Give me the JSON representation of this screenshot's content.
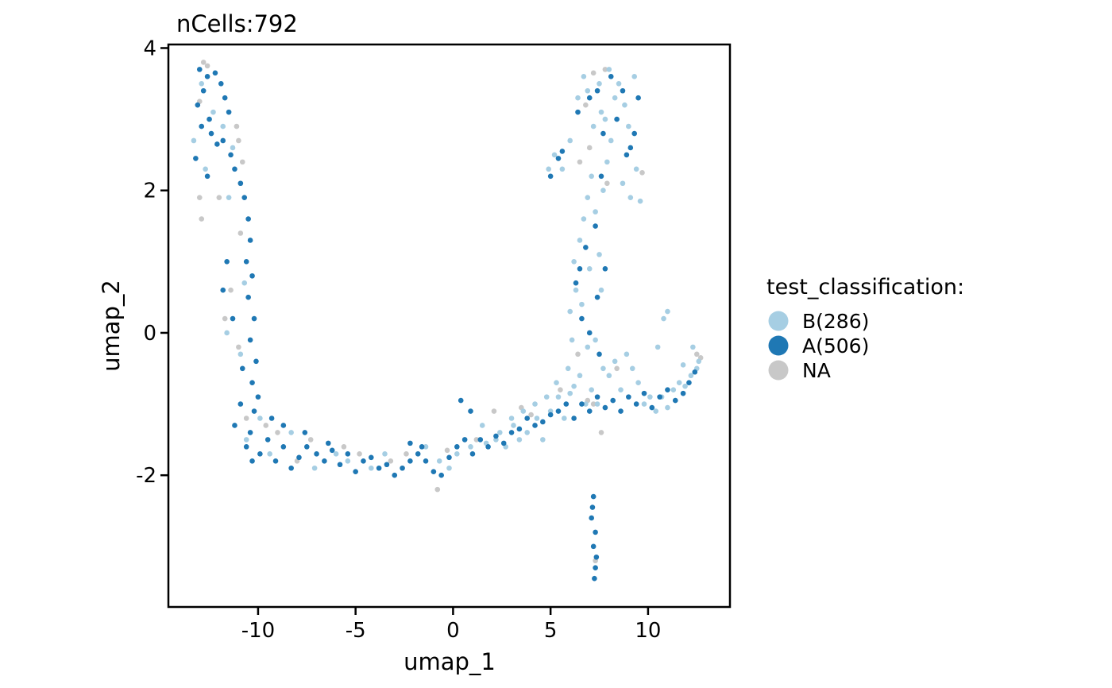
{
  "chart_data": {
    "type": "scatter",
    "title": "nCells:792",
    "xlabel": "umap_1",
    "ylabel": "umap_2",
    "xlim": [
      -14.6,
      14.2
    ],
    "ylim": [
      -3.85,
      4.05
    ],
    "xticks": [
      -10,
      -5,
      0,
      5,
      10
    ],
    "yticks": [
      -2,
      0,
      2,
      4
    ],
    "grid": false,
    "legend": {
      "title": "test_classification:",
      "placement": "right",
      "entries": [
        {
          "label": "B(286)",
          "color": "#A6CEE3"
        },
        {
          "label": "A(506)",
          "color": "#1F78B4"
        },
        {
          "label": "NA",
          "color": "#C8C8C8"
        }
      ]
    },
    "series": [
      {
        "name": "B(286)",
        "color": "#A6CEE3",
        "points": [
          [
            -12.9,
            3.5
          ],
          [
            -13.3,
            2.7
          ],
          [
            -12.7,
            2.3
          ],
          [
            -11.5,
            1.9
          ],
          [
            -10.7,
            0.7
          ],
          [
            -11.6,
            0.0
          ],
          [
            -9.9,
            -1.2
          ],
          [
            -8.3,
            -1.4
          ],
          [
            -7.1,
            -1.9
          ],
          [
            -6.0,
            -1.7
          ],
          [
            -4.2,
            -1.9
          ],
          [
            -3.5,
            -1.7
          ],
          [
            -1.4,
            -1.6
          ],
          [
            -0.7,
            -1.8
          ],
          [
            0.2,
            -1.7
          ],
          [
            0.9,
            -1.6
          ],
          [
            1.7,
            -1.55
          ],
          [
            2.2,
            -1.5
          ],
          [
            2.7,
            -1.6
          ],
          [
            3.1,
            -1.3
          ],
          [
            3.4,
            -1.5
          ],
          [
            3.8,
            -1.4
          ],
          [
            4.3,
            -1.2
          ],
          [
            4.6,
            -1.5
          ],
          [
            5.0,
            -1.1
          ],
          [
            5.4,
            -0.9
          ],
          [
            5.7,
            -1.2
          ],
          [
            6.0,
            -0.85
          ],
          [
            6.2,
            -0.75
          ],
          [
            6.5,
            -0.6
          ],
          [
            6.8,
            -1.0
          ],
          [
            7.1,
            -0.8
          ],
          [
            7.4,
            -1.0
          ],
          [
            7.7,
            -0.5
          ],
          [
            8.0,
            -0.6
          ],
          [
            8.3,
            -0.4
          ],
          [
            8.6,
            -0.8
          ],
          [
            8.9,
            -0.3
          ],
          [
            9.2,
            -0.5
          ],
          [
            9.5,
            -0.7
          ],
          [
            9.8,
            -1.0
          ],
          [
            10.1,
            -0.9
          ],
          [
            10.4,
            -1.1
          ],
          [
            10.7,
            -0.9
          ],
          [
            11.0,
            -1.05
          ],
          [
            11.3,
            -0.8
          ],
          [
            11.6,
            -0.7
          ],
          [
            11.9,
            -0.75
          ],
          [
            12.2,
            -0.6
          ],
          [
            12.5,
            -0.5
          ],
          [
            12.6,
            -0.4
          ],
          [
            12.3,
            -0.2
          ],
          [
            11.8,
            -0.45
          ],
          [
            11.0,
            0.3
          ],
          [
            10.8,
            0.2
          ],
          [
            10.5,
            -0.2
          ],
          [
            6.1,
            -0.1
          ],
          [
            6.0,
            0.3
          ],
          [
            6.3,
            0.6
          ],
          [
            6.2,
            1.0
          ],
          [
            6.5,
            1.3
          ],
          [
            6.7,
            1.6
          ],
          [
            6.9,
            1.9
          ],
          [
            7.1,
            2.2
          ],
          [
            7.3,
            1.7
          ],
          [
            7.5,
            1.1
          ],
          [
            7.7,
            2.0
          ],
          [
            7.9,
            2.4
          ],
          [
            8.1,
            2.7
          ],
          [
            7.8,
            3.0
          ],
          [
            8.3,
            3.3
          ],
          [
            8.5,
            3.5
          ],
          [
            8.8,
            3.2
          ],
          [
            9.0,
            2.9
          ],
          [
            9.3,
            3.6
          ],
          [
            8.0,
            3.7
          ],
          [
            7.5,
            3.5
          ],
          [
            6.9,
            3.4
          ],
          [
            6.7,
            3.6
          ],
          [
            6.4,
            3.3
          ],
          [
            6.0,
            2.7
          ],
          [
            5.6,
            2.3
          ],
          [
            5.2,
            2.5
          ],
          [
            4.9,
            2.3
          ],
          [
            7.2,
            2.9
          ],
          [
            7.6,
            3.1
          ],
          [
            8.7,
            2.1
          ],
          [
            9.1,
            1.9
          ],
          [
            9.4,
            2.3
          ],
          [
            9.6,
            1.85
          ],
          [
            6.6,
            0.4
          ],
          [
            6.9,
            -0.2
          ],
          [
            7.3,
            -0.1
          ],
          [
            7.6,
            0.6
          ],
          [
            5.9,
            -0.5
          ],
          [
            5.3,
            -0.7
          ],
          [
            4.8,
            -0.9
          ],
          [
            4.2,
            -1.0
          ],
          [
            3.6,
            -1.1
          ],
          [
            3.0,
            -1.2
          ],
          [
            2.4,
            -1.4
          ],
          [
            1.5,
            -1.3
          ],
          [
            0.6,
            -1.5
          ],
          [
            -0.2,
            -1.9
          ],
          [
            -5.4,
            -1.8
          ],
          [
            -9.4,
            -1.7
          ],
          [
            -10.6,
            -1.5
          ],
          [
            -10.9,
            -0.3
          ],
          [
            -11.3,
            2.6
          ],
          [
            -12.3,
            3.1
          ],
          [
            -11.8,
            2.9
          ],
          [
            7.0,
            0.9
          ]
        ]
      },
      {
        "name": "A(506)",
        "color": "#1F78B4",
        "points": [
          [
            -13.0,
            3.7
          ],
          [
            -12.8,
            3.4
          ],
          [
            -12.6,
            3.6
          ],
          [
            -12.2,
            3.65
          ],
          [
            -11.9,
            3.5
          ],
          [
            -11.7,
            3.3
          ],
          [
            -11.5,
            3.1
          ],
          [
            -12.5,
            3.0
          ],
          [
            -12.9,
            2.9
          ],
          [
            -13.1,
            3.2
          ],
          [
            -12.4,
            2.8
          ],
          [
            -12.1,
            2.65
          ],
          [
            -11.8,
            2.7
          ],
          [
            -11.4,
            2.5
          ],
          [
            -11.2,
            2.3
          ],
          [
            -10.9,
            2.1
          ],
          [
            -10.7,
            1.9
          ],
          [
            -10.5,
            1.6
          ],
          [
            -10.4,
            1.3
          ],
          [
            -10.6,
            1.0
          ],
          [
            -10.3,
            0.8
          ],
          [
            -10.5,
            0.5
          ],
          [
            -10.2,
            0.2
          ],
          [
            -10.4,
            -0.1
          ],
          [
            -10.1,
            -0.4
          ],
          [
            -10.3,
            -0.7
          ],
          [
            -10.0,
            -0.9
          ],
          [
            -10.2,
            -1.1
          ],
          [
            -10.4,
            -1.4
          ],
          [
            -10.6,
            -1.6
          ],
          [
            -10.3,
            -1.8
          ],
          [
            -9.9,
            -1.7
          ],
          [
            -9.5,
            -1.5
          ],
          [
            -9.1,
            -1.8
          ],
          [
            -8.7,
            -1.6
          ],
          [
            -8.3,
            -1.9
          ],
          [
            -7.9,
            -1.75
          ],
          [
            -7.5,
            -1.6
          ],
          [
            -7.0,
            -1.7
          ],
          [
            -6.6,
            -1.8
          ],
          [
            -6.2,
            -1.65
          ],
          [
            -5.8,
            -1.85
          ],
          [
            -5.4,
            -1.7
          ],
          [
            -5.0,
            -1.95
          ],
          [
            -4.6,
            -1.8
          ],
          [
            -4.2,
            -1.75
          ],
          [
            -3.8,
            -1.9
          ],
          [
            -3.4,
            -1.85
          ],
          [
            -3.0,
            -2.0
          ],
          [
            -2.6,
            -1.9
          ],
          [
            -2.2,
            -1.8
          ],
          [
            -1.8,
            -1.7
          ],
          [
            -1.4,
            -1.8
          ],
          [
            -1.0,
            -1.95
          ],
          [
            -0.6,
            -2.0
          ],
          [
            -0.2,
            -1.75
          ],
          [
            0.2,
            -1.6
          ],
          [
            0.6,
            -1.5
          ],
          [
            1.0,
            -1.7
          ],
          [
            1.4,
            -1.5
          ],
          [
            1.8,
            -1.6
          ],
          [
            2.2,
            -1.45
          ],
          [
            2.6,
            -1.55
          ],
          [
            3.0,
            -1.4
          ],
          [
            3.4,
            -1.35
          ],
          [
            3.8,
            -1.2
          ],
          [
            4.2,
            -1.3
          ],
          [
            4.6,
            -1.25
          ],
          [
            5.0,
            -1.15
          ],
          [
            5.4,
            -1.1
          ],
          [
            5.8,
            -1.0
          ],
          [
            6.2,
            -1.2
          ],
          [
            6.6,
            -1.0
          ],
          [
            7.0,
            -1.1
          ],
          [
            7.4,
            -0.9
          ],
          [
            7.8,
            -1.05
          ],
          [
            8.2,
            -0.95
          ],
          [
            8.6,
            -1.1
          ],
          [
            9.0,
            -0.9
          ],
          [
            9.4,
            -1.0
          ],
          [
            9.8,
            -0.85
          ],
          [
            10.2,
            -1.05
          ],
          [
            10.6,
            -0.9
          ],
          [
            11.0,
            -0.8
          ],
          [
            11.4,
            -0.95
          ],
          [
            11.8,
            -0.85
          ],
          [
            12.1,
            -0.7
          ],
          [
            12.4,
            -0.55
          ],
          [
            7.2,
            -2.3
          ],
          [
            7.1,
            -2.6
          ],
          [
            7.3,
            -2.8
          ],
          [
            7.2,
            -3.0
          ],
          [
            7.3,
            -3.3
          ],
          [
            7.25,
            -3.45
          ],
          [
            7.15,
            -2.45
          ],
          [
            7.35,
            -3.15
          ],
          [
            5.0,
            2.2
          ],
          [
            5.4,
            2.45
          ],
          [
            5.6,
            2.55
          ],
          [
            6.4,
            3.1
          ],
          [
            7.0,
            3.3
          ],
          [
            7.4,
            3.4
          ],
          [
            7.7,
            2.8
          ],
          [
            8.1,
            3.6
          ],
          [
            8.4,
            3.0
          ],
          [
            8.7,
            3.4
          ],
          [
            9.1,
            2.6
          ],
          [
            9.3,
            2.8
          ],
          [
            9.5,
            3.3
          ],
          [
            8.9,
            2.5
          ],
          [
            7.6,
            2.2
          ],
          [
            7.3,
            1.5
          ],
          [
            6.8,
            1.2
          ],
          [
            6.5,
            0.9
          ],
          [
            6.3,
            0.7
          ],
          [
            6.6,
            0.2
          ],
          [
            7.0,
            0.0
          ],
          [
            7.4,
            0.5
          ],
          [
            7.8,
            0.9
          ],
          [
            7.5,
            -0.3
          ],
          [
            -11.6,
            1.0
          ],
          [
            -11.8,
            0.6
          ],
          [
            -11.3,
            0.2
          ],
          [
            -10.8,
            -0.5
          ],
          [
            -10.9,
            -1.0
          ],
          [
            -11.2,
            -1.3
          ],
          [
            -9.3,
            -1.2
          ],
          [
            -8.7,
            -1.3
          ],
          [
            -7.6,
            -1.4
          ],
          [
            -6.4,
            -1.55
          ],
          [
            -2.2,
            -1.55
          ],
          [
            -1.6,
            -1.6
          ],
          [
            0.4,
            -0.95
          ],
          [
            0.9,
            -1.1
          ],
          [
            -13.2,
            2.45
          ],
          [
            -12.6,
            2.2
          ]
        ]
      },
      {
        "name": "NA",
        "color": "#C8C8C8",
        "points": [
          [
            -12.8,
            3.8
          ],
          [
            -12.6,
            3.75
          ],
          [
            -13.0,
            3.25
          ],
          [
            -11.1,
            2.9
          ],
          [
            -11.0,
            2.7
          ],
          [
            -10.8,
            2.4
          ],
          [
            -12.9,
            1.6
          ],
          [
            -10.9,
            1.4
          ],
          [
            -11.4,
            0.6
          ],
          [
            -11.7,
            0.2
          ],
          [
            -11.0,
            -0.2
          ],
          [
            -10.6,
            -1.2
          ],
          [
            -9.6,
            -1.3
          ],
          [
            -9.0,
            -1.4
          ],
          [
            -8.0,
            -1.8
          ],
          [
            -7.3,
            -1.5
          ],
          [
            -5.6,
            -1.6
          ],
          [
            -4.8,
            -1.7
          ],
          [
            -3.2,
            -1.8
          ],
          [
            -2.4,
            -1.7
          ],
          [
            -0.8,
            -2.2
          ],
          [
            -0.3,
            -1.65
          ],
          [
            1.2,
            -1.5
          ],
          [
            2.1,
            -1.1
          ],
          [
            3.5,
            -1.05
          ],
          [
            4.0,
            -1.15
          ],
          [
            5.5,
            -0.8
          ],
          [
            6.4,
            -0.3
          ],
          [
            6.9,
            -0.95
          ],
          [
            7.2,
            -1.0
          ],
          [
            7.6,
            -1.4
          ],
          [
            8.4,
            -0.5
          ],
          [
            7.3,
            -3.2
          ],
          [
            7.8,
            3.7
          ],
          [
            7.2,
            3.65
          ],
          [
            6.8,
            3.2
          ],
          [
            6.5,
            2.4
          ],
          [
            7.9,
            2.1
          ],
          [
            9.7,
            2.25
          ],
          [
            7.0,
            2.6
          ],
          [
            12.7,
            -0.35
          ],
          [
            12.5,
            -0.3
          ],
          [
            -12.0,
            1.9
          ],
          [
            -10.9,
            2.1
          ],
          [
            -13.0,
            1.9
          ]
        ]
      }
    ]
  }
}
